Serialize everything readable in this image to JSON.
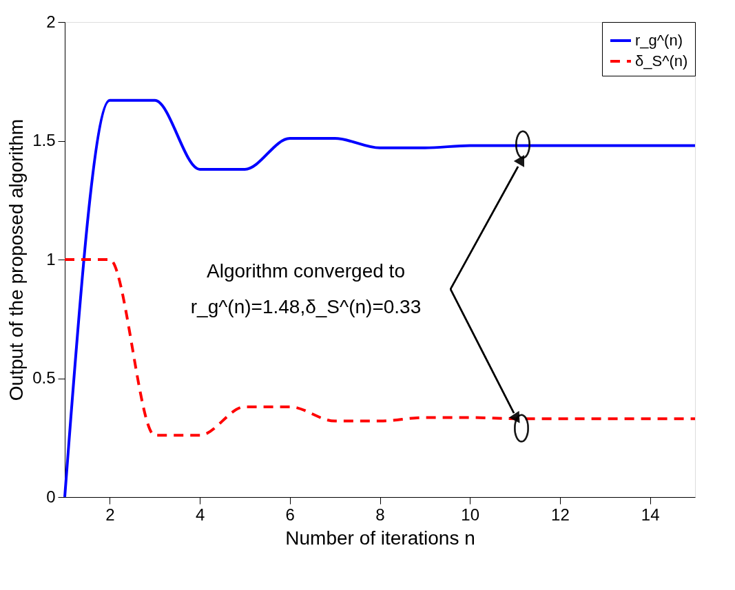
{
  "chart_data": {
    "type": "line",
    "xlabel": "Number of iterations n",
    "ylabel": "Output of the proposed algorithm",
    "x": [
      1,
      2,
      3,
      4,
      5,
      6,
      7,
      8,
      9,
      10,
      11,
      12,
      13,
      14,
      15
    ],
    "series": [
      {
        "name": "r_g^(n)",
        "color": "#0000ff",
        "line_style": "solid",
        "values": [
          0,
          1.67,
          1.67,
          1.38,
          1.38,
          1.51,
          1.51,
          1.47,
          1.47,
          1.48,
          1.48,
          1.48,
          1.48,
          1.48,
          1.48
        ]
      },
      {
        "name": "δ_S^(n)",
        "color": "#ff0000",
        "line_style": "dashed",
        "values": [
          1,
          1,
          0.26,
          0.26,
          0.38,
          0.38,
          0.32,
          0.32,
          0.335,
          0.335,
          0.33,
          0.33,
          0.33,
          0.33,
          0.33
        ]
      }
    ],
    "xlim": [
      1,
      15
    ],
    "xticks": [
      2,
      4,
      6,
      8,
      10,
      12,
      14
    ],
    "ylim": [
      0,
      2
    ],
    "yticks": [
      0,
      0.5,
      1,
      1.5,
      2
    ],
    "grid": false,
    "legend": "top right",
    "marker": "none",
    "annotations": [
      "Algorithm converged to",
      "r_g^(n)=1.48,δ_S^(n)=0.33"
    ]
  }
}
